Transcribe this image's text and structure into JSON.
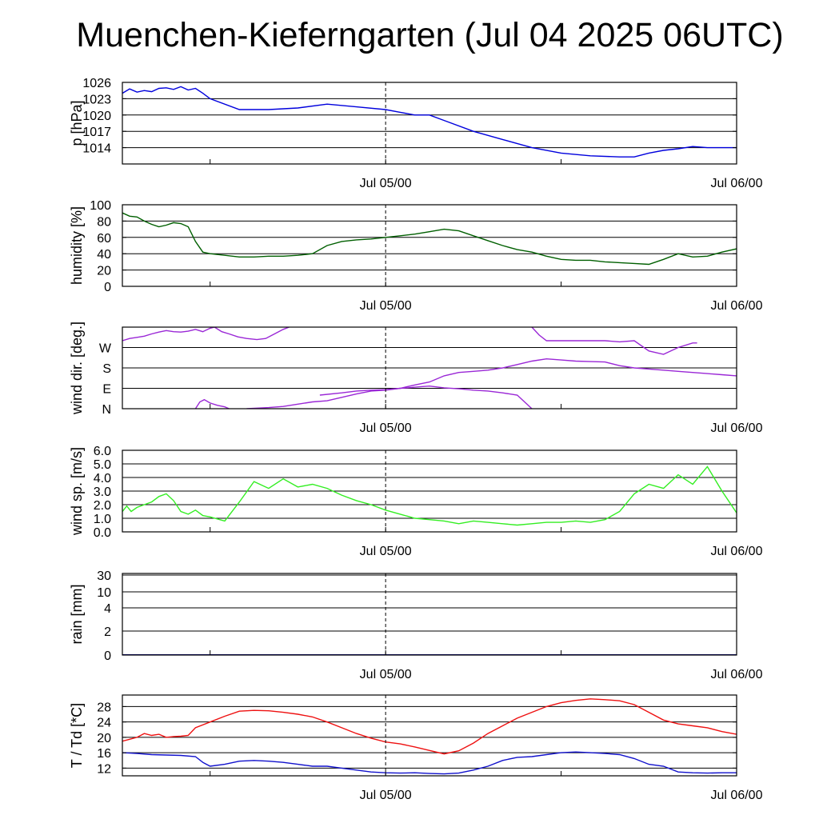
{
  "title": "Muenchen-Kieferngarten (Jul 04 2025 06UTC)",
  "colors": {
    "pressure": "#0000dd",
    "humidity": "#005f00",
    "wind_dir": "#9a27d6",
    "wind_speed": "#33ee22",
    "rain": "#00008b",
    "temperature": "#ee1111",
    "dewpoint": "#1111cc",
    "grid": "#000000"
  },
  "chart_data": [
    {
      "type": "line",
      "ylabel": "p [hPa]",
      "yticks": [
        1014,
        1017,
        1020,
        1023,
        1026
      ],
      "ytick_labels": [
        "1014",
        "1017",
        "1020",
        "1023",
        "1026"
      ],
      "ylim": [
        1011,
        1026
      ],
      "xtick_labels": [
        "Jul 05/00",
        "Jul 06/00"
      ],
      "x_range_hours": [
        0,
        42
      ],
      "series": [
        {
          "color_key": "pressure",
          "x": [
            0,
            0.5,
            1,
            1.5,
            2,
            2.5,
            3,
            3.5,
            4,
            4.5,
            5,
            5.5,
            6,
            8,
            10,
            12,
            14,
            16,
            18,
            19,
            20,
            21,
            22,
            24,
            26,
            28,
            30,
            32,
            34,
            35,
            36,
            37,
            38,
            39,
            40,
            41,
            42
          ],
          "y": [
            1024.0,
            1024.8,
            1024.2,
            1024.5,
            1024.3,
            1024.9,
            1025.0,
            1024.7,
            1025.2,
            1024.6,
            1024.9,
            1024.0,
            1023.0,
            1021.0,
            1021.0,
            1021.3,
            1022.0,
            1021.5,
            1021.0,
            1020.5,
            1020.0,
            1020.0,
            1019.0,
            1017.0,
            1015.5,
            1014.0,
            1013.0,
            1012.5,
            1012.3,
            1012.3,
            1013.0,
            1013.5,
            1013.8,
            1014.2,
            1014.0,
            1014.0,
            1014.0
          ]
        }
      ]
    },
    {
      "type": "line",
      "ylabel": "humidity [%]",
      "yticks": [
        0,
        20,
        40,
        60,
        80,
        100
      ],
      "ytick_labels": [
        "0",
        "20",
        "40",
        "60",
        "80",
        "100"
      ],
      "ylim": [
        0,
        100
      ],
      "xtick_labels": [
        "Jul 05/00",
        "Jul 06/00"
      ],
      "x_range_hours": [
        0,
        42
      ],
      "series": [
        {
          "color_key": "humidity",
          "x": [
            0,
            0.5,
            1,
            1.5,
            2,
            2.5,
            3,
            3.5,
            4,
            4.5,
            5,
            5.5,
            6,
            7,
            8,
            9,
            10,
            11,
            12,
            13,
            14,
            15,
            16,
            17,
            18,
            19,
            20,
            21,
            22,
            23,
            24,
            25,
            26,
            27,
            28,
            29,
            30,
            31,
            32,
            33,
            34,
            35,
            36,
            37,
            38,
            39,
            40,
            41,
            42
          ],
          "y": [
            90,
            86,
            85,
            80,
            76,
            73,
            75,
            78,
            77,
            73,
            55,
            42,
            40,
            38,
            36,
            36,
            37,
            37,
            38,
            40,
            50,
            55,
            57,
            58,
            60,
            62,
            64,
            67,
            70,
            68,
            62,
            56,
            50,
            45,
            42,
            37,
            33,
            32,
            32,
            30,
            29,
            28,
            27,
            33,
            40,
            36,
            37,
            42,
            46
          ]
        }
      ]
    },
    {
      "type": "line",
      "ylabel": "wind dir. [deg.]",
      "yticks": [
        0,
        90,
        180,
        270
      ],
      "ytick_labels": [
        "N",
        "E",
        "S",
        "W"
      ],
      "ylim": [
        0,
        360
      ],
      "xtick_labels": [
        "Jul 05/00",
        "Jul 06/00"
      ],
      "x_range_hours": [
        0,
        42
      ],
      "series": [
        {
          "color_key": "wind_dir",
          "x": [
            0,
            0.5,
            1,
            1.5,
            2,
            2.5,
            3,
            3.5,
            4,
            4.5,
            5,
            5.5,
            6,
            6.3
          ],
          "y": [
            300,
            310,
            315,
            320,
            330,
            338,
            345,
            340,
            338,
            342,
            350,
            340,
            355,
            360
          ]
        },
        {
          "color_key": "wind_dir",
          "x": [
            6.3,
            6.8,
            7.3,
            7.9,
            8.5,
            9.2,
            9.8,
            10.4,
            11.0,
            11.4
          ],
          "y": [
            360,
            340,
            330,
            317,
            310,
            305,
            310,
            330,
            350,
            360
          ]
        },
        {
          "color_key": "wind_dir",
          "x": [
            5.0,
            5.3,
            5.6,
            6.0,
            6.5,
            7.0,
            7.3
          ],
          "y": [
            0,
            30,
            40,
            25,
            15,
            8,
            0
          ]
        },
        {
          "color_key": "wind_dir",
          "x": [
            8.5,
            10,
            11,
            12,
            13,
            14,
            15,
            16,
            17,
            18,
            19,
            20,
            21,
            22,
            23,
            24,
            25,
            26,
            27,
            28,
            29,
            30,
            31,
            32,
            33,
            34,
            35,
            36,
            37,
            38,
            39,
            40,
            41,
            42
          ],
          "y": [
            0,
            5,
            10,
            20,
            30,
            35,
            50,
            65,
            78,
            82,
            90,
            105,
            118,
            145,
            160,
            165,
            170,
            180,
            195,
            210,
            220,
            215,
            210,
            208,
            206,
            190,
            180,
            175,
            170,
            165,
            160,
            155,
            150,
            145
          ]
        },
        {
          "color_key": "wind_dir",
          "x": [
            13.5,
            15,
            16,
            17,
            18,
            19,
            19.5,
            20,
            21,
            22,
            23,
            24,
            25,
            26,
            27,
            28
          ],
          "y": [
            60,
            70,
            78,
            82,
            84,
            90,
            92,
            95,
            100,
            92,
            88,
            82,
            78,
            70,
            60,
            0
          ]
        },
        {
          "color_key": "wind_dir",
          "x": [
            28,
            28.5,
            29,
            30,
            31,
            32,
            33,
            34,
            35,
            36,
            37,
            38,
            39,
            39.3
          ],
          "y": [
            360,
            325,
            300,
            300,
            300,
            300,
            300,
            295,
            300,
            255,
            240,
            270,
            290,
            290
          ]
        }
      ]
    },
    {
      "type": "line",
      "ylabel": "wind sp. [m/s]",
      "yticks": [
        0,
        1,
        2,
        3,
        4,
        5,
        6
      ],
      "ytick_labels": [
        "0.0",
        "1.0",
        "2.0",
        "3.0",
        "4.0",
        "5.0",
        "6.0"
      ],
      "ylim": [
        0,
        6
      ],
      "xtick_labels": [
        "Jul 05/00",
        "Jul 06/00"
      ],
      "x_range_hours": [
        0,
        42
      ],
      "series": [
        {
          "color_key": "wind_speed",
          "x": [
            0,
            0.3,
            0.6,
            1,
            1.5,
            2,
            2.5,
            3,
            3.5,
            4,
            4.5,
            5,
            5.5,
            6,
            7,
            8,
            9,
            10,
            11,
            12,
            13,
            14,
            15,
            16,
            17,
            18,
            19,
            20,
            21,
            22,
            23,
            24,
            25,
            26,
            27,
            28,
            29,
            30,
            31,
            32,
            33,
            34,
            35,
            36,
            37,
            38,
            39,
            40,
            41,
            42
          ],
          "y": [
            1.5,
            1.9,
            1.5,
            1.8,
            2.0,
            2.2,
            2.6,
            2.8,
            2.3,
            1.5,
            1.3,
            1.6,
            1.2,
            1.1,
            0.8,
            2.2,
            3.7,
            3.2,
            3.9,
            3.3,
            3.5,
            3.2,
            2.7,
            2.3,
            2.0,
            1.6,
            1.3,
            1.0,
            0.9,
            0.8,
            0.6,
            0.8,
            0.7,
            0.6,
            0.5,
            0.6,
            0.7,
            0.7,
            0.8,
            0.7,
            0.9,
            1.5,
            2.8,
            3.5,
            3.2,
            4.2,
            3.5,
            4.8,
            3.0,
            1.4
          ]
        }
      ]
    },
    {
      "type": "line",
      "ylabel": "rain [mm]",
      "yticks": [
        0,
        2,
        4,
        10,
        30
      ],
      "ytick_labels": [
        "0",
        "2",
        "4",
        "10",
        "30"
      ],
      "ylim": [
        0,
        30
      ],
      "scale": "nonlinear",
      "xtick_labels": [
        "Jul 05/00",
        "Jul 06/00"
      ],
      "x_range_hours": [
        0,
        42
      ],
      "series": [
        {
          "color_key": "rain",
          "x": [
            0,
            42
          ],
          "y": [
            0,
            0
          ]
        }
      ]
    },
    {
      "type": "line",
      "ylabel": "T / Td [*C]",
      "yticks": [
        12,
        16,
        20,
        24,
        28
      ],
      "ytick_labels": [
        "12",
        "16",
        "20",
        "24",
        "28"
      ],
      "ylim": [
        10,
        31
      ],
      "xtick_labels": [
        "Jul 05/00",
        "Jul 06/00"
      ],
      "x_range_hours": [
        0,
        42
      ],
      "series": [
        {
          "color_key": "temperature",
          "x": [
            0,
            0.5,
            1,
            1.5,
            2,
            2.5,
            3,
            3.5,
            4,
            4.5,
            5,
            6,
            7,
            8,
            9,
            10,
            11,
            12,
            13,
            14,
            15,
            16,
            17,
            18,
            19,
            20,
            21,
            22,
            23,
            24,
            25,
            26,
            27,
            28,
            29,
            30,
            31,
            32,
            33,
            34,
            35,
            36,
            37,
            38,
            39,
            40,
            41,
            42
          ],
          "y": [
            19.0,
            19.5,
            20.0,
            21.0,
            20.5,
            20.8,
            20.0,
            20.2,
            20.3,
            20.5,
            22.5,
            24.0,
            25.5,
            26.8,
            27.0,
            26.9,
            26.5,
            26.0,
            25.3,
            24.0,
            22.5,
            21.0,
            19.8,
            18.8,
            18.3,
            17.5,
            16.6,
            15.7,
            16.5,
            18.5,
            21.0,
            23.0,
            25.0,
            26.5,
            28.0,
            29.0,
            29.6,
            30.0,
            29.8,
            29.5,
            28.5,
            26.5,
            24.5,
            23.5,
            23.0,
            22.5,
            21.5,
            20.8
          ]
        },
        {
          "color_key": "dewpoint",
          "x": [
            0,
            1,
            2,
            3,
            4,
            5,
            5.5,
            6,
            7,
            8,
            9,
            10,
            11,
            12,
            13,
            14,
            15,
            16,
            17,
            18,
            19,
            20,
            21,
            22,
            23,
            24,
            25,
            26,
            27,
            28,
            29,
            30,
            31,
            32,
            33,
            34,
            35,
            36,
            37,
            38,
            39,
            40,
            41,
            42
          ],
          "y": [
            16.0,
            15.8,
            15.5,
            15.4,
            15.3,
            15.0,
            13.5,
            12.5,
            13.0,
            13.8,
            14.0,
            13.8,
            13.5,
            13.0,
            12.5,
            12.5,
            12.0,
            11.5,
            11.0,
            10.8,
            10.7,
            10.8,
            10.6,
            10.5,
            10.7,
            11.5,
            12.5,
            14.0,
            14.8,
            15.0,
            15.5,
            16.0,
            16.2,
            16.0,
            15.8,
            15.5,
            14.5,
            13.0,
            12.5,
            11.0,
            10.8,
            10.7,
            10.8,
            10.8
          ]
        }
      ]
    }
  ]
}
